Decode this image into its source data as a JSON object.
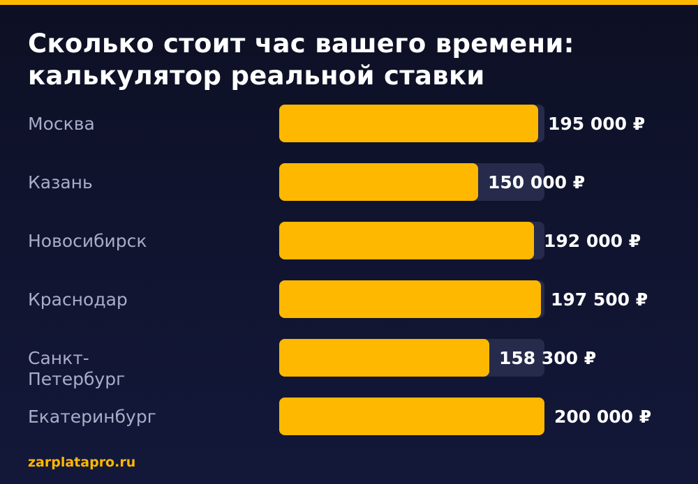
{
  "title_lines": [
    "Сколько стоит час вашего времени:",
    "калькулятор реальной ставки"
  ],
  "footer": {
    "site": "zarplatapro.ru"
  },
  "colors": {
    "background": "#0d1024",
    "accent": "#ffb800",
    "track": "#262b4c",
    "label": "#a8adc8",
    "value": "#ffffff"
  },
  "chart_data": {
    "type": "bar",
    "orientation": "horizontal",
    "title": "Сколько стоит час вашего времени: калькулятор реальной ставки",
    "categories": [
      "Москва",
      "Казань",
      "Новосибирск",
      "Краснодар",
      "Санкт-Петербург",
      "Екатеринбург"
    ],
    "values": [
      195000,
      150000,
      192000,
      197500,
      158300,
      200000
    ],
    "value_labels": [
      "195 000 ₽",
      "150 000 ₽",
      "192 000 ₽",
      "197 500 ₽",
      "158 300 ₽",
      "200 000 ₽"
    ],
    "unit": "₽",
    "xlim": [
      0,
      200000
    ],
    "grid": false,
    "legend": false
  }
}
